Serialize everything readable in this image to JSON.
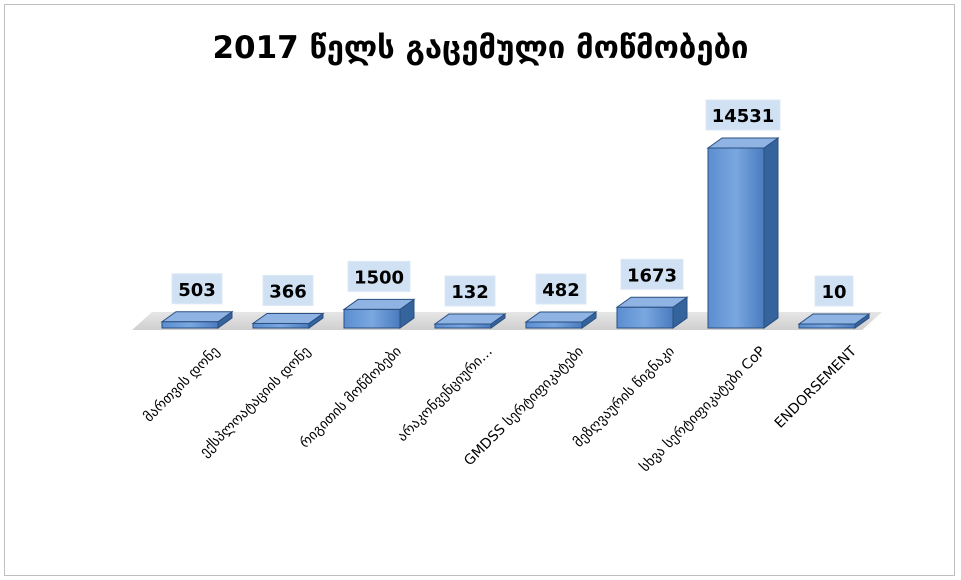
{
  "chart_data": {
    "type": "bar",
    "title": "2017 წელს გაცემული მოწმობები",
    "categories": [
      "მართვის დონე",
      "ექსპლოატაციის დონე",
      "რიგითის მოწმობები",
      "არაკონვენციური…",
      "GMDSS სერტიფიკატები",
      "მეზღვაურის წიგნაკი",
      "სხვა სერტიფიკატები CoP",
      "ENDORSEMENT"
    ],
    "values": [
      503,
      366,
      1500,
      132,
      482,
      1673,
      14531,
      10
    ],
    "data_labels": [
      "503",
      "366",
      "1500",
      "132",
      "482",
      "1673",
      "14531",
      "10"
    ],
    "ylim": [
      0,
      14531
    ],
    "grid": false,
    "legend": "none",
    "bar_color": "#4f81bd"
  }
}
